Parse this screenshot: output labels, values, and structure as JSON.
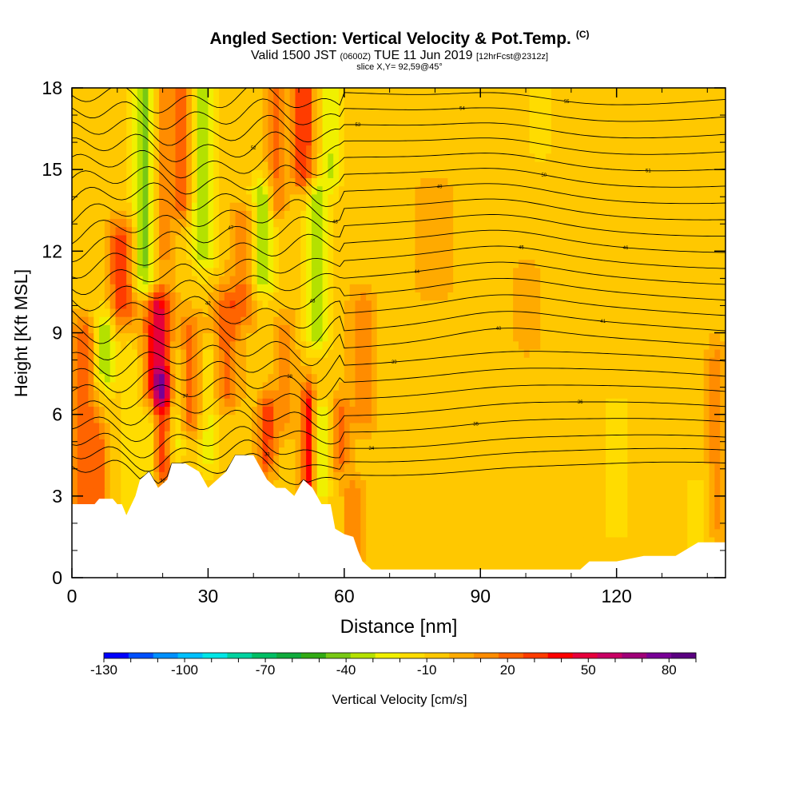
{
  "header": {
    "title": "Angled Section: Vertical Velocity & Pot.Temp.",
    "title_suffix": "(C)",
    "valid_prefix": "Valid 1500 JST",
    "valid_utc": "(0600Z)",
    "valid_date": "TUE 11 Jun 2019",
    "forecast": "[12hrFcst@2312z]",
    "slice": "slice X,Y= 92,59@45°"
  },
  "chart_data": {
    "type": "heatmap",
    "xlabel": "Distance [nm]",
    "ylabel": "Height [Kft MSL]",
    "xlim": [
      0,
      144
    ],
    "ylim": [
      0,
      18
    ],
    "x_ticks": [
      0,
      30,
      60,
      90,
      120
    ],
    "y_ticks": [
      0,
      3,
      6,
      9,
      12,
      15,
      18
    ],
    "colorbar": {
      "label": "Vertical Velocity [cm/s]",
      "min": -130,
      "max": 90,
      "step": 10,
      "tick_labels": [
        "-130",
        "-100",
        "-70",
        "-40",
        "-10",
        "20",
        "50",
        "80"
      ],
      "colors": [
        "#0000ff",
        "#0050ff",
        "#0090ff",
        "#00c0ff",
        "#00e6e6",
        "#00d2a0",
        "#00be64",
        "#10aa3c",
        "#32aa14",
        "#78c814",
        "#b4e100",
        "#f0f000",
        "#ffdc00",
        "#ffc800",
        "#ffaa00",
        "#ff8c00",
        "#ff6400",
        "#ff3c00",
        "#ff0000",
        "#e6003c",
        "#c80064",
        "#a00078",
        "#780096",
        "#5a0080"
      ]
    },
    "background_value": 5,
    "terrain": [
      [
        0,
        2.7
      ],
      [
        5,
        2.7
      ],
      [
        6,
        2.9
      ],
      [
        9,
        2.9
      ],
      [
        10,
        2.7
      ],
      [
        11,
        2.7
      ],
      [
        12,
        2.3
      ],
      [
        14,
        3.0
      ],
      [
        15,
        3.6
      ],
      [
        17,
        3.9
      ],
      [
        18,
        3.6
      ],
      [
        19,
        3.3
      ],
      [
        21,
        3.6
      ],
      [
        22,
        4.2
      ],
      [
        25,
        4.2
      ],
      [
        28,
        3.9
      ],
      [
        29,
        3.6
      ],
      [
        30,
        3.3
      ],
      [
        32,
        3.6
      ],
      [
        34,
        3.9
      ],
      [
        36,
        4.5
      ],
      [
        40,
        4.5
      ],
      [
        41,
        4.2
      ],
      [
        43,
        3.6
      ],
      [
        45,
        3.3
      ],
      [
        47,
        3.3
      ],
      [
        49,
        3.0
      ],
      [
        51,
        3.6
      ],
      [
        53,
        3.3
      ],
      [
        55,
        2.7
      ],
      [
        57,
        2.7
      ],
      [
        58,
        1.8
      ],
      [
        60,
        1.6
      ],
      [
        62,
        1.5
      ],
      [
        63,
        1.0
      ],
      [
        64,
        0.6
      ],
      [
        66,
        0.3
      ],
      [
        112,
        0.3
      ],
      [
        114,
        0.6
      ],
      [
        120,
        0.6
      ],
      [
        126,
        0.8
      ],
      [
        133,
        0.8
      ],
      [
        138,
        1.3
      ],
      [
        144,
        1.3
      ]
    ],
    "features": [
      {
        "x": 3,
        "w": 3.0,
        "y0": 1,
        "y1": 9,
        "v": 30
      },
      {
        "x": 6,
        "w": 2.0,
        "y0": 2,
        "y1": 5,
        "v": 20
      },
      {
        "x": 7,
        "w": 2.5,
        "y0": 7.6,
        "y1": 9.2,
        "v": -35
      },
      {
        "x": 11,
        "w": 3.0,
        "y0": 10,
        "y1": 12.5,
        "v": 40
      },
      {
        "x": 13,
        "w": 2.0,
        "y0": 3,
        "y1": 8,
        "v": -15
      },
      {
        "x": 16,
        "w": 2.5,
        "y0": 11,
        "y1": 18,
        "v": -40
      },
      {
        "x": 17,
        "w": 2.0,
        "y0": 3,
        "y1": 6,
        "v": -15
      },
      {
        "x": 19,
        "w": 3.0,
        "y0": 7,
        "y1": 10,
        "v": 60
      },
      {
        "x": 20,
        "w": 2.0,
        "y0": 4,
        "y1": 7,
        "v": 40
      },
      {
        "x": 20,
        "w": 2.5,
        "y0": 12,
        "y1": 18,
        "v": 20
      },
      {
        "x": 23,
        "w": 2.0,
        "y0": 5,
        "y1": 8,
        "v": -20
      },
      {
        "x": 24,
        "w": 2.0,
        "y0": 14,
        "y1": 18,
        "v": 35
      },
      {
        "x": 26,
        "w": 2.5,
        "y0": 6,
        "y1": 9,
        "v": 30
      },
      {
        "x": 29,
        "w": 2.5,
        "y0": 12,
        "y1": 18,
        "v": -35
      },
      {
        "x": 30,
        "w": 2.0,
        "y0": 4.5,
        "y1": 8,
        "v": -20
      },
      {
        "x": 34,
        "w": 3.0,
        "y0": 7,
        "y1": 10,
        "v": 30
      },
      {
        "x": 38,
        "w": 3.0,
        "y0": 10,
        "y1": 13,
        "v": 25
      },
      {
        "x": 42,
        "w": 2.5,
        "y0": 11,
        "y1": 14,
        "v": -35
      },
      {
        "x": 43,
        "w": 2.0,
        "y0": 4.5,
        "y1": 6,
        "v": 40
      },
      {
        "x": 45,
        "w": 2.0,
        "y0": 14,
        "y1": 18,
        "v": 30
      },
      {
        "x": 47,
        "w": 2.5,
        "y0": 6,
        "y1": 9,
        "v": 20
      },
      {
        "x": 51,
        "w": 2.5,
        "y0": 15,
        "y1": 18,
        "v": 45
      },
      {
        "x": 52,
        "w": 1.5,
        "y0": 3.4,
        "y1": 6.5,
        "v": 50
      },
      {
        "x": 54,
        "w": 2.5,
        "y0": 9,
        "y1": 14,
        "v": -30
      },
      {
        "x": 55,
        "w": 2.0,
        "y0": 3.5,
        "y1": 5.8,
        "v": -25
      },
      {
        "x": 57,
        "w": 2.5,
        "y0": 15,
        "y1": 18,
        "v": -25
      },
      {
        "x": 59,
        "w": 2.0,
        "y0": 4.5,
        "y1": 6,
        "v": 30
      },
      {
        "x": 62,
        "w": 2.0,
        "y0": 1,
        "y1": 3,
        "v": 25
      },
      {
        "x": 64,
        "w": 3.0,
        "y0": 6,
        "y1": 10,
        "v": 20
      },
      {
        "x": 80,
        "w": 4.0,
        "y0": 11,
        "y1": 14,
        "v": 15
      },
      {
        "x": 95,
        "w": 3.0,
        "y0": 3,
        "y1": 12,
        "v": -5
      },
      {
        "x": 100,
        "w": 3.0,
        "y0": 9,
        "y1": 11,
        "v": 15
      },
      {
        "x": 103,
        "w": 3.0,
        "y0": 16,
        "y1": 18,
        "v": -10
      },
      {
        "x": 120,
        "w": 3.0,
        "y0": 2,
        "y1": 6,
        "v": -10
      },
      {
        "x": 138,
        "w": 3.0,
        "y0": 1.3,
        "y1": 3,
        "v": -10
      },
      {
        "x": 142,
        "w": 2.0,
        "y0": 2,
        "y1": 8,
        "v": 20
      }
    ],
    "theta_contours": [
      {
        "base": 4.0,
        "label": "32"
      },
      {
        "base": 4.5,
        "label": "33"
      },
      {
        "base": 5.0,
        "label": "34"
      },
      {
        "base": 5.6,
        "label": "35"
      },
      {
        "base": 6.2,
        "label": "36"
      },
      {
        "base": 6.8,
        "label": "37"
      },
      {
        "base": 7.4,
        "label": "38"
      },
      {
        "base": 8.0,
        "label": "39"
      },
      {
        "base": 8.6,
        "label": "40"
      },
      {
        "base": 9.2,
        "label": "41"
      },
      {
        "base": 9.8,
        "label": "42"
      },
      {
        "base": 10.4,
        "label": "43"
      },
      {
        "base": 11.0,
        "label": "44"
      },
      {
        "base": 11.6,
        "label": "45"
      },
      {
        "base": 12.2,
        "label": "46"
      },
      {
        "base": 12.8,
        "label": "47"
      },
      {
        "base": 13.4,
        "label": "48"
      },
      {
        "base": 14.0,
        "label": "49"
      },
      {
        "base": 14.6,
        "label": "50"
      },
      {
        "base": 15.2,
        "label": "51"
      },
      {
        "base": 15.8,
        "label": "52"
      },
      {
        "base": 16.4,
        "label": "53"
      },
      {
        "base": 17.0,
        "label": "54"
      },
      {
        "base": 17.6,
        "label": "55"
      }
    ]
  }
}
